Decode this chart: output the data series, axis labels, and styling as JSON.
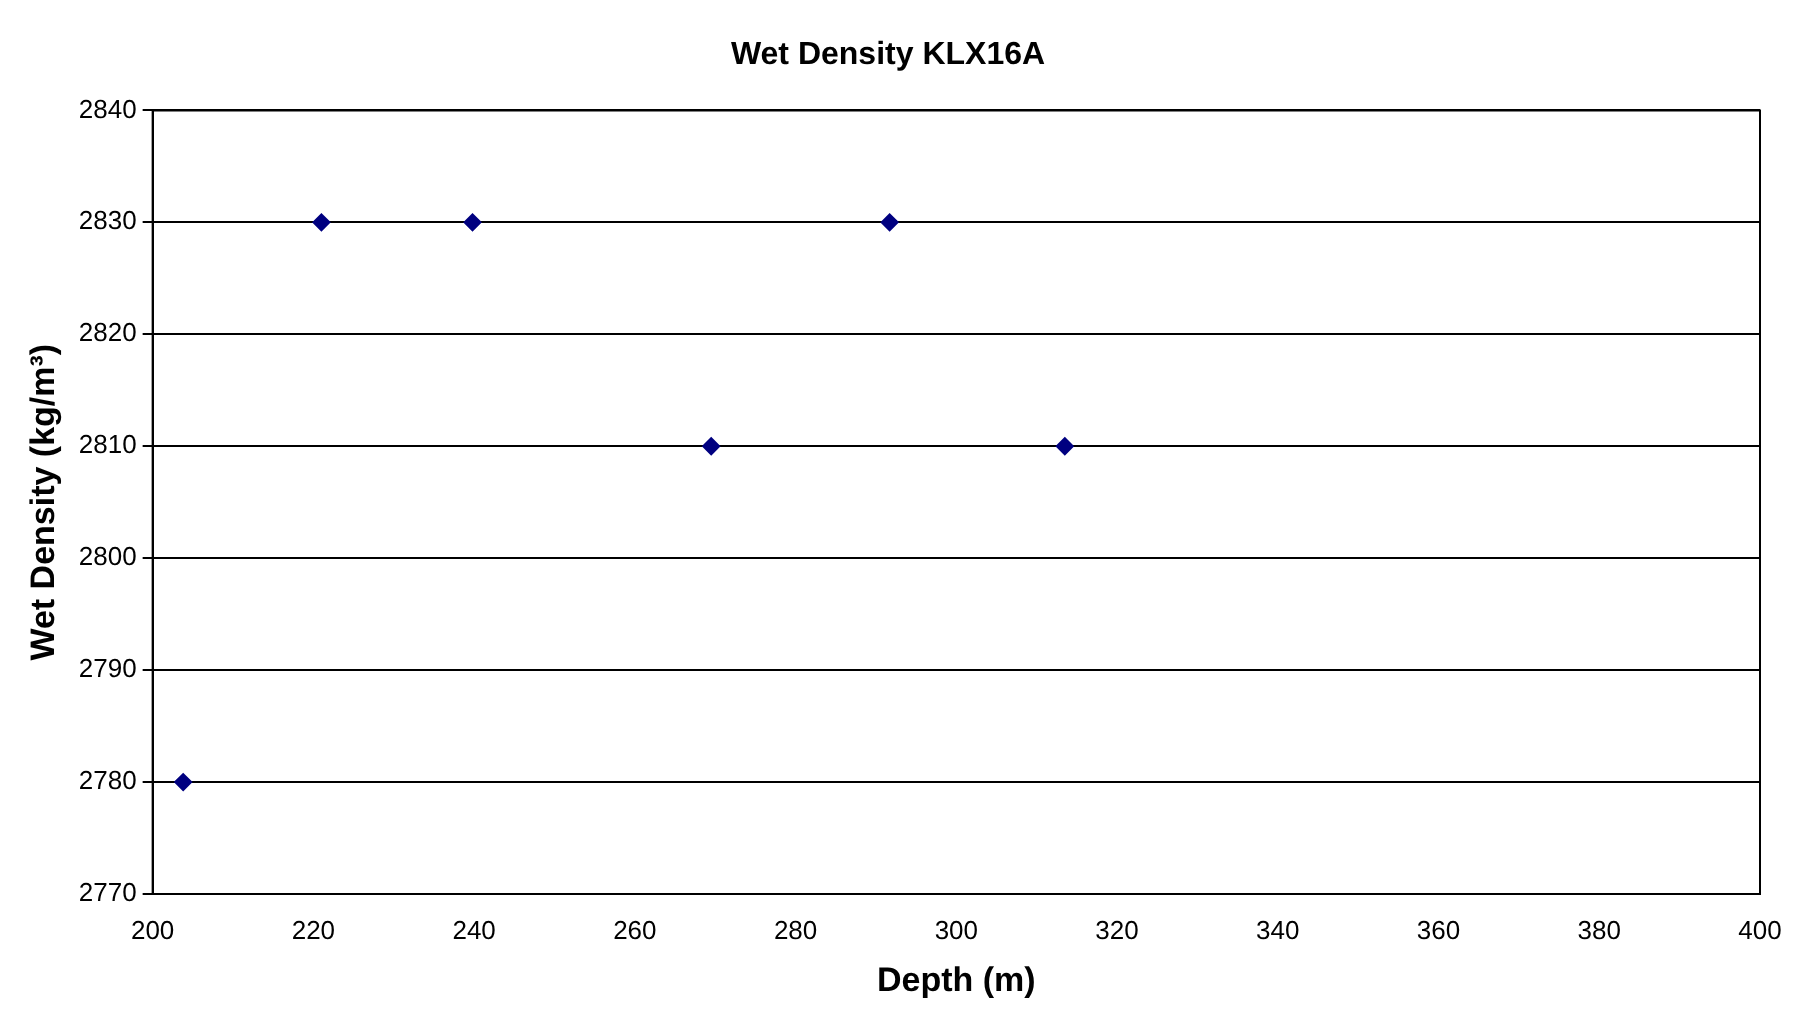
{
  "chart_data": {
    "type": "scatter",
    "title": "Wet Density KLX16A",
    "xlabel": "Depth (m)",
    "ylabel": "Wet Density (kg/m³)",
    "x": [
      203.8,
      221,
      239.8,
      269.5,
      291.7,
      313.5
    ],
    "series": [
      {
        "color": "#000080",
        "values": [
          2780,
          2830,
          2830,
          2810,
          2830,
          2810
        ]
      }
    ],
    "xlim": [
      200,
      400
    ],
    "xticks": [
      200,
      220,
      240,
      260,
      280,
      300,
      320,
      340,
      360,
      380,
      400
    ],
    "ylim": [
      2770,
      2840
    ],
    "yticks": [
      2770,
      2780,
      2790,
      2800,
      2810,
      2820,
      2830,
      2840
    ],
    "grid": "y",
    "legend": false,
    "marker": "diamond"
  }
}
